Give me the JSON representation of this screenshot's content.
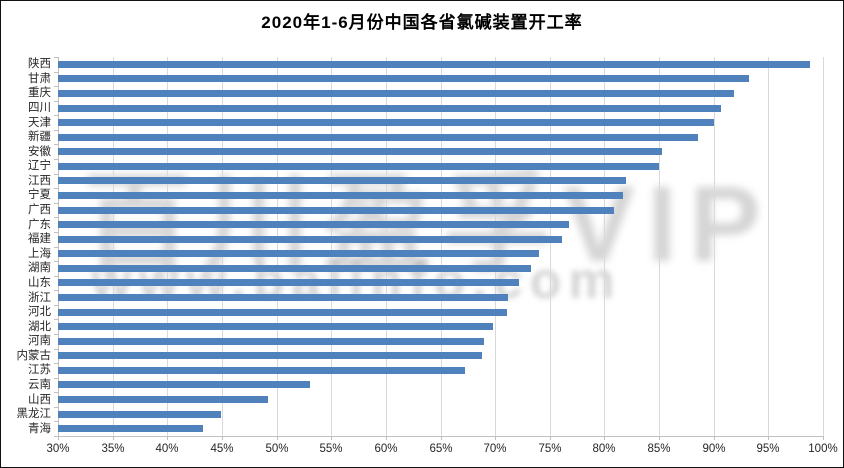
{
  "chart_data": {
    "type": "bar",
    "orientation": "horizontal",
    "title": "2020年1-6月份中国各省氯碱装置开工率",
    "categories": [
      "陕西",
      "甘肃",
      "重庆",
      "四川",
      "天津",
      "新疆",
      "安徽",
      "辽宁",
      "江西",
      "宁夏",
      "广西",
      "广东",
      "福建",
      "上海",
      "湖南",
      "山东",
      "浙江",
      "河北",
      "湖北",
      "河南",
      "内蒙古",
      "江苏",
      "云南",
      "山西",
      "黑龙江",
      "青海"
    ],
    "values": [
      98.8,
      93.2,
      91.9,
      90.7,
      90.0,
      88.6,
      85.3,
      85.0,
      82.0,
      81.7,
      80.9,
      76.8,
      76.1,
      74.0,
      73.3,
      72.2,
      71.2,
      71.1,
      69.8,
      69.0,
      68.8,
      67.2,
      53.1,
      49.2,
      44.9,
      43.3
    ],
    "value_unit": "%",
    "xlim": [
      30,
      100
    ],
    "x_tick_step": 5,
    "x_tick_labels": [
      "30%",
      "35%",
      "40%",
      "45%",
      "50%",
      "55%",
      "60%",
      "65%",
      "70%",
      "75%",
      "80%",
      "85%",
      "90%",
      "95%",
      "100%"
    ],
    "xlabel": "",
    "ylabel": "",
    "grid": true,
    "legend": false,
    "bar_color": "#4F81BD",
    "gridline_color": "#D9D9D9",
    "axis_color": "#BFBFBF",
    "label_color": "#262626"
  },
  "watermark": {
    "line1": "百川盈孚VIP",
    "line2": "www.baiinfo.com"
  }
}
